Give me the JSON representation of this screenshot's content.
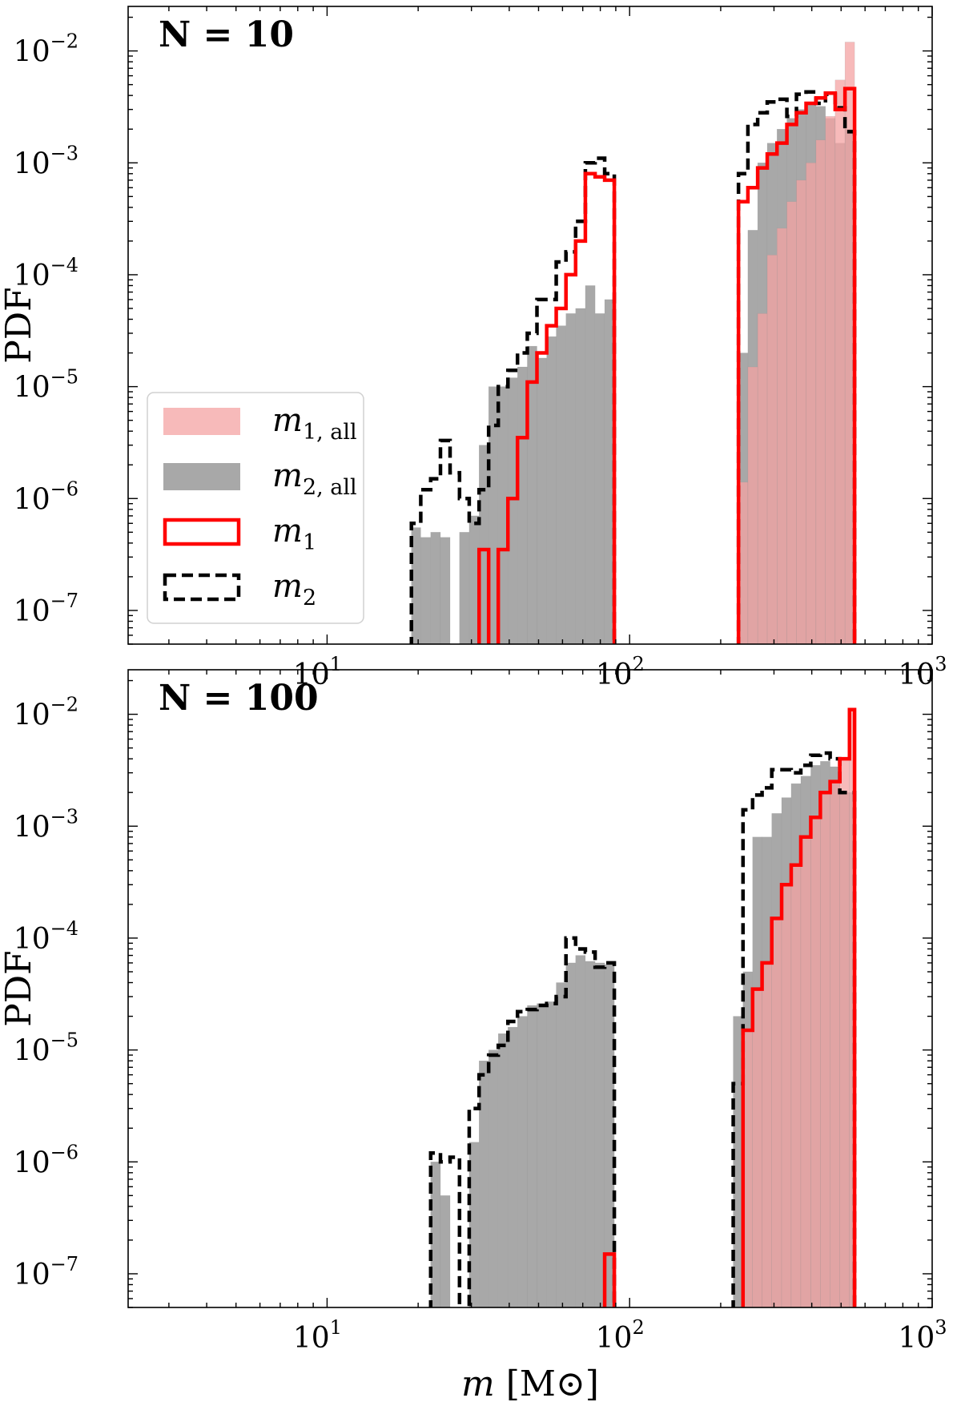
{
  "chart_data": [
    {
      "type": "histogram",
      "title": "N = 10",
      "xlabel": "m [M⊙]",
      "ylabel": "PDF",
      "xscale": "log",
      "yscale": "log",
      "xlim": [
        2.2,
        1000
      ],
      "ylim": [
        5e-08,
        0.025
      ],
      "xticks": [
        {
          "base": "10",
          "exp": "1"
        },
        {
          "base": "10",
          "exp": "2"
        },
        {
          "base": "10",
          "exp": "3"
        }
      ],
      "yticks": [
        {
          "base": "10",
          "exp": "−2"
        },
        {
          "base": "10",
          "exp": "−3"
        },
        {
          "base": "10",
          "exp": "−4"
        },
        {
          "base": "10",
          "exp": "−5"
        },
        {
          "base": "10",
          "exp": "−6"
        },
        {
          "base": "10",
          "exp": "−7"
        }
      ],
      "legend": {
        "position": "left-middle",
        "entries": [
          {
            "key": "m1_all",
            "label": "m",
            "sub": "1, all"
          },
          {
            "key": "m2_all",
            "label": "m",
            "sub": "2, all"
          },
          {
            "key": "m1",
            "label": "m",
            "sub": "1"
          },
          {
            "key": "m2",
            "label": "m",
            "sub": "2"
          }
        ]
      },
      "colors": {
        "m1_all": "#f4a3a3",
        "m2_all": "#a8a8a8",
        "m1": "#ff0000",
        "m2": "#000000"
      },
      "series": [
        {
          "key": "m2_all",
          "style": "filled-step",
          "color": "#a8a8a8",
          "edges": [
            19,
            20.4,
            22.0,
            23.7,
            25.5,
            27.4,
            29.5,
            31.8,
            34.2,
            36.8,
            39.6,
            42.6,
            45.9,
            49.4,
            53.2,
            57.2,
            61.6,
            66.3,
            71.4,
            76.9,
            82.7,
            89.0
          ],
          "values": [
            5.5e-07,
            4.5e-07,
            5e-07,
            4.5e-07,
            0,
            5e-07,
            7e-07,
            3e-06,
            1e-05,
            1e-05,
            1.2e-05,
            1.5e-05,
            2.3e-05,
            1.8e-05,
            2.8e-05,
            3.5e-05,
            4.5e-05,
            5e-05,
            8e-05,
            4.5e-05,
            6e-05
          ]
        },
        {
          "key": "m2_all",
          "style": "filled-step",
          "color": "#a8a8a8",
          "edges": [
            229,
            246,
            265,
            285,
            307,
            331,
            356,
            383,
            413,
            444,
            478,
            515,
            554
          ],
          "values": [
            2e-05,
            0.00025,
            0.001,
            0.0015,
            0.002,
            0.0025,
            0.003,
            0.0035,
            0.0032,
            0.0025,
            0.0015,
            0.002
          ]
        },
        {
          "key": "m1_all",
          "style": "filled-step",
          "color": "#f4a3a3",
          "edges": [
            229,
            246,
            265,
            285,
            307,
            331,
            356,
            383,
            413,
            444,
            478,
            515,
            554
          ],
          "values": [
            1.4e-06,
            1.5e-05,
            4.5e-05,
            0.00015,
            0.00026,
            0.00045,
            0.0007,
            0.001,
            0.0016,
            0.0026,
            0.0055,
            0.012
          ]
        },
        {
          "key": "m2",
          "style": "dashed-step",
          "color": "#000000",
          "edges": [
            19,
            20.4,
            22.0,
            23.7,
            25.5,
            27.4,
            29.5,
            31.8,
            34.2,
            36.8,
            39.6,
            42.6,
            45.9,
            49.4,
            53.2,
            57.2,
            61.6,
            66.3,
            71.4,
            76.9,
            82.7,
            89.0
          ],
          "values": [
            6e-07,
            1.2e-06,
            1.5e-06,
            3.3e-06,
            1.7e-06,
            1e-06,
            6e-07,
            1.2e-06,
            4.5e-06,
            1e-05,
            1.4e-05,
            2e-05,
            3e-05,
            6e-05,
            6e-05,
            0.00013,
            0.00016,
            0.0003,
            0.001,
            0.0011,
            0.0008
          ]
        },
        {
          "key": "m2",
          "style": "dashed-step",
          "color": "#000000",
          "edges": [
            229,
            246,
            265,
            285,
            307,
            331,
            356,
            383,
            413,
            444,
            478,
            515,
            554
          ],
          "values": [
            0.0008,
            0.0022,
            0.0028,
            0.0035,
            0.0037,
            0.0026,
            0.0041,
            0.0043,
            0.0034,
            0.0041,
            0.0031,
            0.0019
          ]
        },
        {
          "key": "m1",
          "style": "step",
          "color": "#ff0000",
          "edges": [
            31.8,
            34.2,
            36.8,
            39.6,
            42.6,
            45.9,
            49.4,
            53.2,
            57.2,
            61.6,
            66.3,
            71.4,
            76.9,
            82.7,
            89.0
          ],
          "values": [
            3.5e-07,
            0,
            3.5e-07,
            1e-06,
            3.5e-06,
            1.1e-05,
            2e-05,
            3.5e-05,
            5e-05,
            0.0001,
            0.0002,
            0.0008,
            0.00075,
            0.0007
          ]
        },
        {
          "key": "m1",
          "style": "step",
          "color": "#ff0000",
          "edges": [
            229,
            246,
            265,
            285,
            307,
            331,
            356,
            383,
            413,
            444,
            478,
            515,
            554
          ],
          "values": [
            0.00045,
            0.0006,
            0.0009,
            0.0012,
            0.0015,
            0.0022,
            0.0028,
            0.0034,
            0.0038,
            0.0042,
            0.003,
            0.0046
          ]
        }
      ]
    },
    {
      "type": "histogram",
      "title": "N = 100",
      "xlabel": "m [M⊙]",
      "ylabel": "PDF",
      "xscale": "log",
      "yscale": "log",
      "xlim": [
        2.2,
        1000
      ],
      "ylim": [
        5e-08,
        0.025
      ],
      "xticks": [
        {
          "base": "10",
          "exp": "1"
        },
        {
          "base": "10",
          "exp": "2"
        },
        {
          "base": "10",
          "exp": "3"
        }
      ],
      "yticks": [
        {
          "base": "10",
          "exp": "−2"
        },
        {
          "base": "10",
          "exp": "−3"
        },
        {
          "base": "10",
          "exp": "−4"
        },
        {
          "base": "10",
          "exp": "−5"
        },
        {
          "base": "10",
          "exp": "−6"
        },
        {
          "base": "10",
          "exp": "−7"
        }
      ],
      "series": [
        {
          "key": "m2_all",
          "style": "filled-step",
          "color": "#a8a8a8",
          "edges": [
            22.0,
            23.7,
            25.5,
            27.4,
            29.5,
            31.8,
            34.2,
            36.8,
            39.6,
            42.6,
            45.9,
            49.4,
            53.2,
            57.2,
            61.6,
            66.3,
            71.4,
            76.9,
            82.7,
            89.0
          ],
          "values": [
            1e-06,
            5e-07,
            0,
            0,
            1.5e-06,
            8e-06,
            1e-05,
            1.4e-05,
            1.6e-05,
            2e-05,
            2.5e-05,
            2.6e-05,
            2.7e-05,
            4e-05,
            6e-05,
            7e-05,
            6.2e-05,
            6e-05,
            5.8e-05
          ]
        },
        {
          "key": "m2_all",
          "style": "filled-step",
          "color": "#a8a8a8",
          "edges": [
            220,
            237,
            255,
            274,
            295,
            318,
            342,
            368,
            397,
            427,
            460,
            495,
            533,
            554
          ],
          "values": [
            2e-05,
            5e-05,
            0.0008,
            0.0008,
            0.0013,
            0.0018,
            0.0024,
            0.0028,
            0.0035,
            0.0038,
            0.0034,
            0.002,
            0.002
          ]
        },
        {
          "key": "m1_all",
          "style": "filled-step",
          "color": "#f4a3a3",
          "edges": [
            237,
            255,
            274,
            295,
            318,
            342,
            368,
            397,
            427,
            460,
            495,
            533,
            554
          ],
          "values": [
            1.5e-05,
            3.5e-05,
            6e-05,
            0.00015,
            0.0003,
            0.00045,
            0.0008,
            0.0012,
            0.002,
            0.0025,
            0.004,
            0.011
          ]
        },
        {
          "key": "m2",
          "style": "dashed-step",
          "color": "#000000",
          "edges": [
            22.0,
            23.7,
            25.5,
            27.4,
            29.5,
            31.8,
            34.2,
            36.8,
            39.6,
            42.6,
            45.9,
            49.4,
            53.2,
            57.2,
            61.6,
            66.3,
            71.4,
            76.9,
            82.7,
            89.0
          ],
          "values": [
            1.2e-06,
            1e-06,
            1.1e-06,
            0,
            3e-06,
            6e-06,
            9e-06,
            1.1e-05,
            1.8e-05,
            2.2e-05,
            2.3e-05,
            2.5e-05,
            2.6e-05,
            3e-05,
            0.0001,
            8e-05,
            7.5e-05,
            5.5e-05,
            6e-05
          ]
        },
        {
          "key": "m2",
          "style": "dashed-step",
          "color": "#000000",
          "edges": [
            220,
            237,
            255,
            274,
            295,
            318,
            342,
            368,
            397,
            427,
            460,
            495,
            533,
            554
          ],
          "values": [
            5e-06,
            0.0014,
            0.0019,
            0.0022,
            0.0032,
            0.0032,
            0.003,
            0.0035,
            0.0043,
            0.0045,
            0.004,
            0.002,
            0.002
          ]
        },
        {
          "key": "m1",
          "style": "step",
          "color": "#ff0000",
          "edges": [
            82.7,
            89.0
          ],
          "values": [
            1.5e-07
          ]
        },
        {
          "key": "m1",
          "style": "step",
          "color": "#ff0000",
          "edges": [
            237,
            255,
            274,
            295,
            318,
            342,
            368,
            397,
            427,
            460,
            495,
            533,
            554
          ],
          "values": [
            1.5e-05,
            3.5e-05,
            6e-05,
            0.00015,
            0.0003,
            0.00045,
            0.0008,
            0.0012,
            0.002,
            0.0025,
            0.004,
            0.011
          ]
        }
      ]
    }
  ]
}
